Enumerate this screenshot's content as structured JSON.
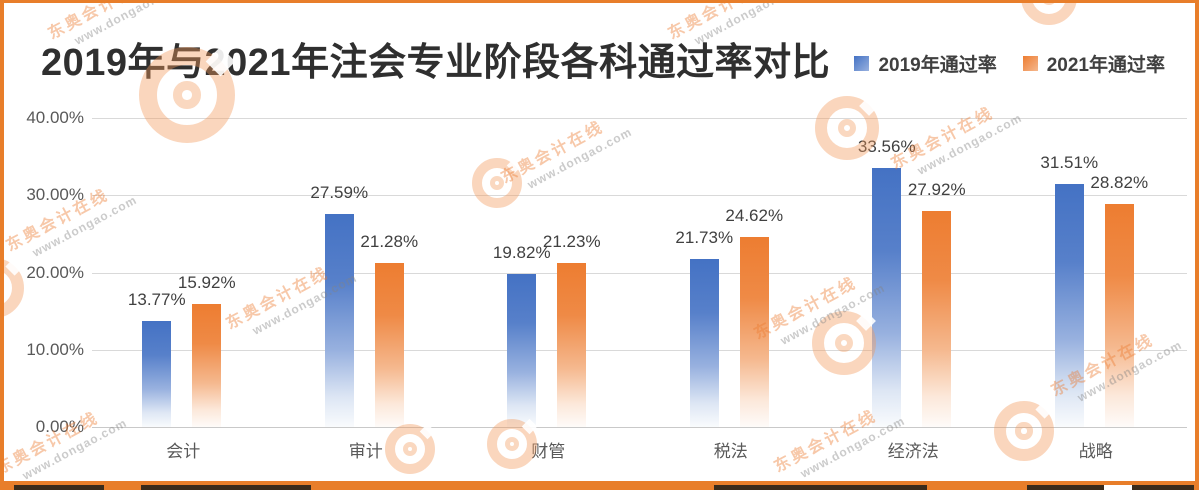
{
  "header": {
    "title": "2019年与2021年注会专业阶段各科通过率对比"
  },
  "legend": {
    "items": [
      {
        "label": "2019年通过率",
        "color": "#4472C4"
      },
      {
        "label": "2021年通过率",
        "color": "#ED7D31"
      }
    ]
  },
  "chart_data": {
    "type": "bar",
    "title": "2019年与2021年注会专业阶段各科通过率对比",
    "categories": [
      "会计",
      "审计",
      "财管",
      "税法",
      "经济法",
      "战略"
    ],
    "series": [
      {
        "name": "2019年通过率",
        "color": "#4472C4",
        "values": [
          13.77,
          27.59,
          19.82,
          21.73,
          33.56,
          31.51
        ],
        "labels": [
          "13.77%",
          "27.59%",
          "19.82%",
          "21.73%",
          "33.56%",
          "31.51%"
        ]
      },
      {
        "name": "2021年通过率",
        "color": "#ED7D31",
        "values": [
          15.92,
          21.28,
          21.23,
          24.62,
          27.92,
          28.82
        ],
        "labels": [
          "15.92%",
          "21.28%",
          "21.23%",
          "24.62%",
          "27.92%",
          "28.82%"
        ]
      }
    ],
    "xlabel": "",
    "ylabel": "",
    "y_axis": {
      "min": 0,
      "max": 40,
      "step": 10,
      "tick_labels": [
        "0.00%",
        "10.00%",
        "20.00%",
        "30.00%",
        "40.00%"
      ]
    },
    "grid": true,
    "legend_position": "top-right",
    "bar_gradient": "solid color at top fading to white at bar bottom"
  },
  "watermark": {
    "brand_text": "东奥会计在线",
    "url_text": "www.dongao.com",
    "logo_name": "dongao-circle-logo",
    "brand_color": "#ED7D31",
    "url_color": "#828282"
  },
  "frame": {
    "border_color": "#E87E2A",
    "background_color": "#FFFFFF",
    "gridline_color": "#D9D9D9",
    "title_color": "#2F2F2F",
    "axis_text_color": "#595959",
    "data_label_color": "#404040"
  },
  "bottom_strip": {
    "dark_color": "#3A2B1B",
    "orange_color": "#E87E2A",
    "white_color": "#FFFFFF"
  }
}
